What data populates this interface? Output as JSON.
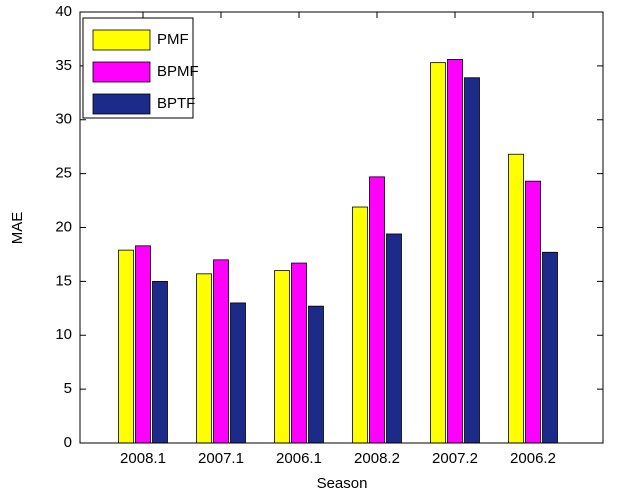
{
  "chart_data": {
    "type": "bar",
    "x_label": "Season",
    "y_label": "MAE",
    "categories": [
      "2008.1",
      "2007.1",
      "2006.1",
      "2008.2",
      "2007.2",
      "2006.2"
    ],
    "series": [
      {
        "name": "PMF",
        "color": "#ffff00",
        "values": [
          17.9,
          15.7,
          16.0,
          21.9,
          35.3,
          26.8
        ]
      },
      {
        "name": "BPMF",
        "color": "#ff00ff",
        "values": [
          18.3,
          17.0,
          16.7,
          24.7,
          35.6,
          24.3
        ]
      },
      {
        "name": "BPTF",
        "color": "#1c2a8a",
        "values": [
          15.0,
          13.0,
          12.7,
          19.4,
          33.9,
          17.7
        ]
      }
    ],
    "ylim": [
      0,
      40
    ],
    "yticks": [
      0,
      5,
      10,
      15,
      20,
      25,
      30,
      35,
      40
    ],
    "legend": "upper-left"
  }
}
